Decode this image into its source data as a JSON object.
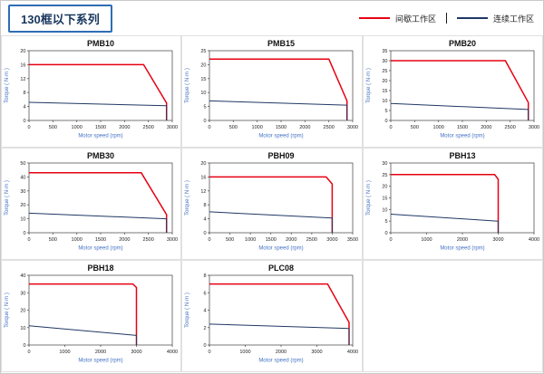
{
  "page": {
    "title": "130框以下系列"
  },
  "legend": {
    "items": [
      {
        "label": "间歇工作区",
        "color": "#e60012"
      },
      {
        "label": "连续工作区",
        "color": "#1f3864"
      }
    ]
  },
  "chart_data": [
    {
      "type": "line",
      "title": "PMB10",
      "xlabel": "Motor speed (rpm)",
      "ylabel": "Torque ( N·m )",
      "xlim": [
        0,
        3000
      ],
      "ylim": [
        0,
        20
      ],
      "xticks": [
        0,
        500,
        1000,
        1500,
        2000,
        2500,
        3000
      ],
      "yticks": [
        0,
        4,
        8,
        12,
        16,
        20
      ],
      "legend_position": "none",
      "grid": false,
      "series": [
        {
          "name": "间歇工作区",
          "color": "#e60012",
          "points": [
            [
              0,
              16
            ],
            [
              2400,
              16
            ],
            [
              2880,
              5
            ],
            [
              2880,
              0
            ]
          ]
        },
        {
          "name": "连续工作区",
          "color": "#1f3864",
          "points": [
            [
              0,
              5.2
            ],
            [
              2880,
              4.2
            ],
            [
              2880,
              0
            ]
          ]
        }
      ]
    },
    {
      "type": "line",
      "title": "PMB15",
      "xlabel": "Motor speed (rpm)",
      "ylabel": "Torque ( N·m )",
      "xlim": [
        0,
        3000
      ],
      "ylim": [
        0,
        25
      ],
      "xticks": [
        0,
        500,
        1000,
        1500,
        2000,
        2500,
        3000
      ],
      "yticks": [
        0,
        5,
        10,
        15,
        20,
        25
      ],
      "legend_position": "none",
      "grid": false,
      "series": [
        {
          "name": "间歇工作区",
          "color": "#e60012",
          "points": [
            [
              0,
              22
            ],
            [
              2500,
              22
            ],
            [
              2880,
              7
            ],
            [
              2880,
              0
            ]
          ]
        },
        {
          "name": "连续工作区",
          "color": "#1f3864",
          "points": [
            [
              0,
              7
            ],
            [
              2880,
              5.5
            ],
            [
              2880,
              0
            ]
          ]
        }
      ]
    },
    {
      "type": "line",
      "title": "PMB20",
      "xlabel": "Motor speed (rpm)",
      "ylabel": "Torque ( N·m )",
      "xlim": [
        0,
        3000
      ],
      "ylim": [
        0,
        35
      ],
      "xticks": [
        0,
        500,
        1000,
        1500,
        2000,
        2500,
        3000
      ],
      "yticks": [
        0,
        5,
        10,
        15,
        20,
        25,
        30,
        35
      ],
      "legend_position": "none",
      "grid": false,
      "series": [
        {
          "name": "间歇工作区",
          "color": "#e60012",
          "points": [
            [
              0,
              30
            ],
            [
              2400,
              30
            ],
            [
              2880,
              9
            ],
            [
              2880,
              0
            ]
          ]
        },
        {
          "name": "连续工作区",
          "color": "#1f3864",
          "points": [
            [
              0,
              8.5
            ],
            [
              2880,
              5.5
            ],
            [
              2880,
              0
            ]
          ]
        }
      ]
    },
    {
      "type": "line",
      "title": "PMB30",
      "xlabel": "Motor speed (rpm)",
      "ylabel": "Torque ( N·m )",
      "xlim": [
        0,
        3000
      ],
      "ylim": [
        0,
        50
      ],
      "xticks": [
        0,
        500,
        1000,
        1500,
        2000,
        2500,
        3000
      ],
      "yticks": [
        0,
        10,
        20,
        30,
        40,
        50
      ],
      "legend_position": "none",
      "grid": false,
      "series": [
        {
          "name": "间歇工作区",
          "color": "#e60012",
          "points": [
            [
              0,
              43
            ],
            [
              2350,
              43
            ],
            [
              2880,
              13
            ],
            [
              2880,
              0
            ]
          ]
        },
        {
          "name": "连续工作区",
          "color": "#1f3864",
          "points": [
            [
              0,
              14
            ],
            [
              2880,
              10
            ],
            [
              2880,
              0
            ]
          ]
        }
      ]
    },
    {
      "type": "line",
      "title": "PBH09",
      "xlabel": "Motor speed (rpm)",
      "ylabel": "Torque ( N·m )",
      "xlim": [
        0,
        3500
      ],
      "ylim": [
        0,
        20
      ],
      "xticks": [
        0,
        500,
        1000,
        1500,
        2000,
        2500,
        3000,
        3500
      ],
      "yticks": [
        0,
        4,
        8,
        12,
        16,
        20
      ],
      "legend_position": "none",
      "grid": false,
      "series": [
        {
          "name": "间歇工作区",
          "color": "#e60012",
          "points": [
            [
              0,
              16
            ],
            [
              2850,
              16
            ],
            [
              3000,
              14
            ],
            [
              3000,
              0
            ]
          ]
        },
        {
          "name": "连续工作区",
          "color": "#1f3864",
          "points": [
            [
              0,
              6
            ],
            [
              3000,
              4.2
            ],
            [
              3000,
              0
            ]
          ]
        }
      ]
    },
    {
      "type": "line",
      "title": "PBH13",
      "xlabel": "Motor speed (rpm)",
      "ylabel": "Torque ( N·m )",
      "xlim": [
        0,
        4000
      ],
      "ylim": [
        0,
        30
      ],
      "xticks": [
        0,
        1000,
        2000,
        3000,
        4000
      ],
      "yticks": [
        0,
        5,
        10,
        15,
        20,
        25,
        30
      ],
      "legend_position": "none",
      "grid": false,
      "series": [
        {
          "name": "间歇工作区",
          "color": "#e60012",
          "points": [
            [
              0,
              25
            ],
            [
              2900,
              25
            ],
            [
              3000,
              23
            ],
            [
              3000,
              0
            ]
          ]
        },
        {
          "name": "连续工作区",
          "color": "#1f3864",
          "points": [
            [
              0,
              8
            ],
            [
              3000,
              5
            ],
            [
              3000,
              0
            ]
          ]
        }
      ]
    },
    {
      "type": "line",
      "title": "PBH18",
      "xlabel": "Motor speed (rpm)",
      "ylabel": "Torque ( N·m )",
      "xlim": [
        0,
        4000
      ],
      "ylim": [
        0,
        40
      ],
      "xticks": [
        0,
        1000,
        2000,
        3000,
        4000
      ],
      "yticks": [
        0,
        10,
        20,
        30,
        40
      ],
      "legend_position": "none",
      "grid": false,
      "series": [
        {
          "name": "间歇工作区",
          "color": "#e60012",
          "points": [
            [
              0,
              35
            ],
            [
              2900,
              35
            ],
            [
              3000,
              33
            ],
            [
              3000,
              0
            ]
          ]
        },
        {
          "name": "连续工作区",
          "color": "#1f3864",
          "points": [
            [
              0,
              11
            ],
            [
              3000,
              5.5
            ],
            [
              3000,
              0
            ]
          ]
        }
      ]
    },
    {
      "type": "line",
      "title": "PLC08",
      "xlabel": "Motor speed (rpm)",
      "ylabel": "Torque ( N·m )",
      "xlim": [
        0,
        4000
      ],
      "ylim": [
        0,
        8
      ],
      "xticks": [
        0,
        1000,
        2000,
        3000,
        4000
      ],
      "yticks": [
        0,
        2,
        4,
        6,
        8
      ],
      "legend_position": "none",
      "grid": false,
      "series": [
        {
          "name": "间歇工作区",
          "color": "#e60012",
          "points": [
            [
              0,
              7
            ],
            [
              3300,
              7
            ],
            [
              3900,
              2.6
            ],
            [
              3900,
              0
            ]
          ]
        },
        {
          "name": "连续工作区",
          "color": "#1f3864",
          "points": [
            [
              0,
              2.4
            ],
            [
              3900,
              1.9
            ],
            [
              3900,
              0
            ]
          ]
        }
      ]
    }
  ]
}
